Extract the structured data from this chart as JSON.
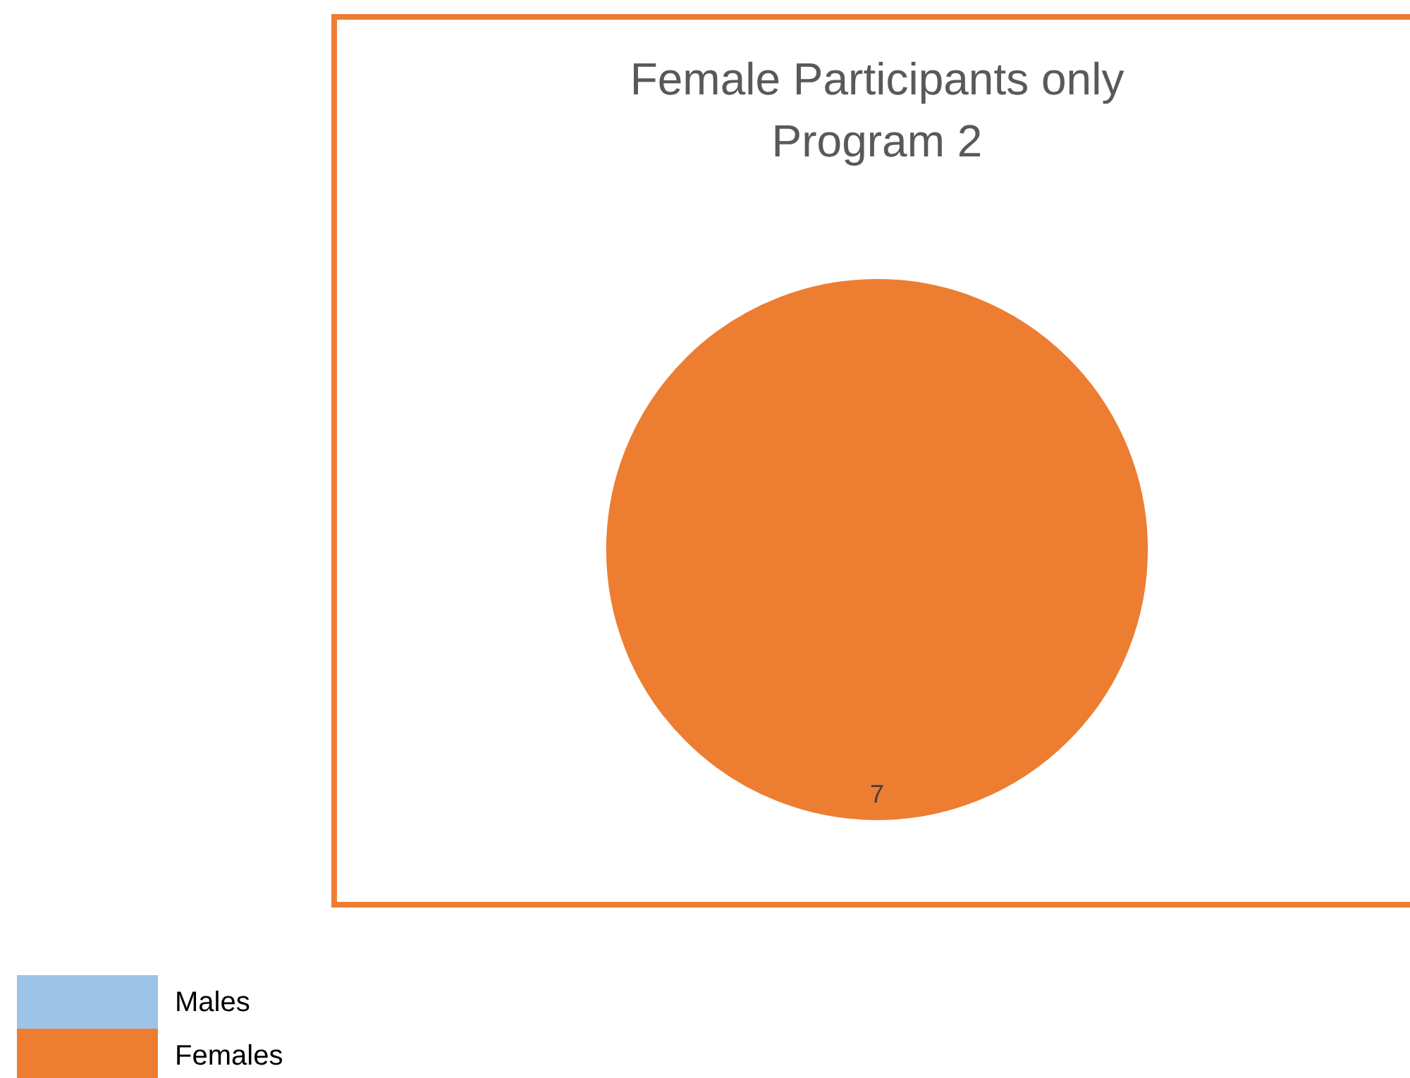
{
  "chart_data": {
    "type": "pie",
    "title": "Female Participants only\nProgram 2",
    "categories": [
      "Males",
      "Females"
    ],
    "values": [
      0,
      7
    ],
    "colors": [
      "#9dc3e6",
      "#ed7d31"
    ],
    "value_labels": [
      null,
      "7"
    ],
    "legend": "bottom left"
  }
}
